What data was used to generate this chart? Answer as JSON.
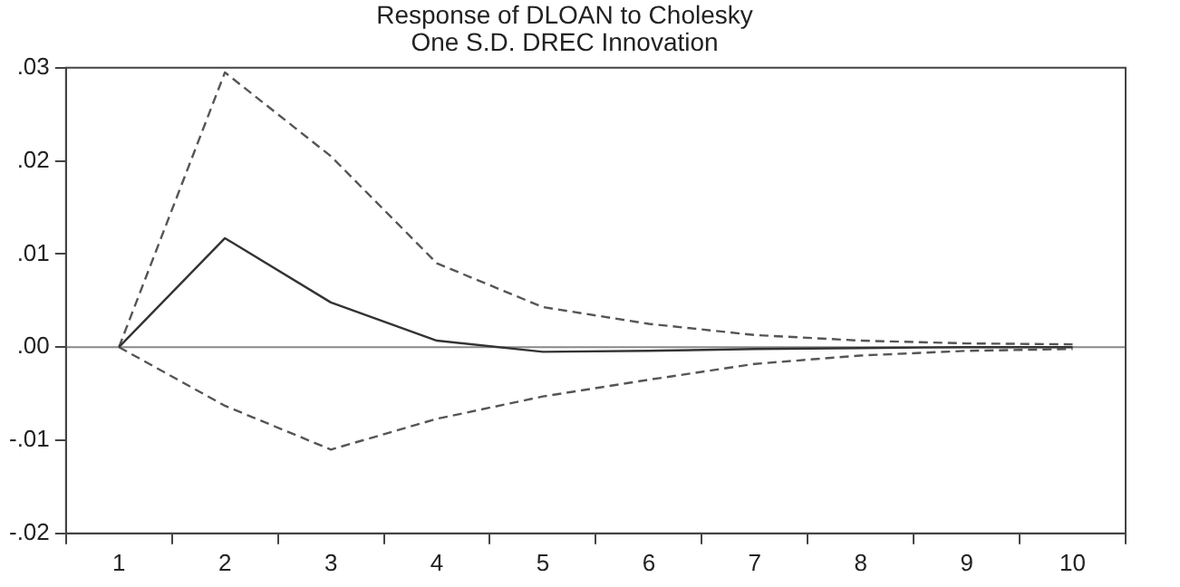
{
  "chart_data": {
    "type": "line",
    "title": "Response of DLOAN to Cholesky",
    "subtitle": "One S.D. DREC Innovation",
    "categories": [
      "1",
      "2",
      "3",
      "4",
      "5",
      "6",
      "7",
      "8",
      "9",
      "10"
    ],
    "series": [
      {
        "color": "#333333",
        "line_style": "solid",
        "values": [
          0,
          0.0117,
          0.0048,
          0.0007,
          -0.0005,
          -0.0004,
          -0.0002,
          -0.0001,
          0,
          0
        ]
      },
      {
        "color": "#555555",
        "line_style": "dashed",
        "values": [
          0,
          0.0295,
          0.0205,
          0.009,
          0.0043,
          0.0025,
          0.0013,
          0.0007,
          0.0004,
          0.0003
        ]
      },
      {
        "color": "#555555",
        "line_style": "dashed",
        "values": [
          0,
          -0.0063,
          -0.011,
          -0.0077,
          -0.0053,
          -0.0035,
          -0.0018,
          -0.0009,
          -0.0004,
          -0.0002
        ]
      }
    ],
    "ylim": [
      -0.02,
      0.03
    ],
    "yticks": [
      {
        "value": -0.02,
        "label": "-.02"
      },
      {
        "value": -0.01,
        "label": "-.01"
      },
      {
        "value": 0,
        "label": ".00"
      },
      {
        "value": 0.01,
        "label": ".01"
      },
      {
        "value": 0.02,
        "label": ".02"
      },
      {
        "value": 0.03,
        "label": ".03"
      }
    ],
    "ref_lines": [
      {
        "axis": "y",
        "value": 0,
        "color": "#888888"
      }
    ],
    "grid": false,
    "legend": false,
    "marker": "none"
  }
}
